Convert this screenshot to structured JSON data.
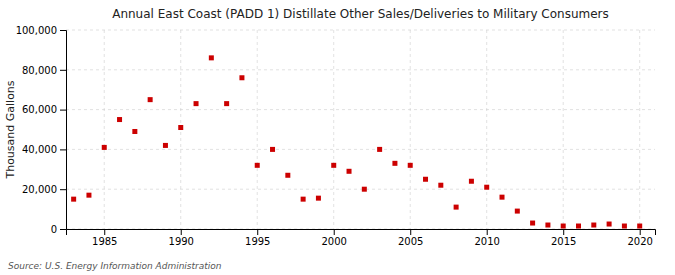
{
  "chart_data": {
    "type": "scatter",
    "title": "Annual East Coast (PADD 1) Distillate Other Sales/Deliveries to Military Consumers",
    "y_label": "Thousand Gallons",
    "annotations": [
      "Source: U.S. Energy Information Administration"
    ],
    "x": [
      1983,
      1984,
      1985,
      1986,
      1987,
      1988,
      1989,
      1990,
      1991,
      1992,
      1993,
      1994,
      1995,
      1996,
      1997,
      1998,
      1999,
      2000,
      2001,
      2002,
      2003,
      2004,
      2005,
      2006,
      2007,
      2008,
      2009,
      2010,
      2011,
      2012,
      2013,
      2014,
      2015,
      2016,
      2017,
      2018,
      2019,
      2020
    ],
    "values": [
      15000,
      17000,
      41000,
      55000,
      49000,
      65000,
      42000,
      51000,
      63000,
      86000,
      63000,
      76000,
      32000,
      40000,
      27000,
      15000,
      15500,
      32000,
      29000,
      20000,
      40000,
      33000,
      32000,
      25000,
      22000,
      11000,
      24000,
      21000,
      16000,
      9000,
      3000,
      2000,
      1500,
      1500,
      2000,
      2500,
      1500,
      1500
    ],
    "color": "#cc0000",
    "marker": "square",
    "xlim": [
      1982.5,
      2021
    ],
    "ylim": [
      0,
      100000
    ],
    "xticks": [
      1985,
      1990,
      1995,
      2000,
      2005,
      2010,
      2015,
      2020
    ],
    "yticks": [
      0,
      {
        "value": 20000,
        "label": "20,000"
      },
      {
        "value": 40000,
        "label": "40,000"
      },
      {
        "value": 60000,
        "label": "60,000"
      },
      {
        "value": 80000,
        "label": "80,000"
      },
      {
        "value": 100000,
        "label": "100,000"
      }
    ],
    "grid": true
  }
}
